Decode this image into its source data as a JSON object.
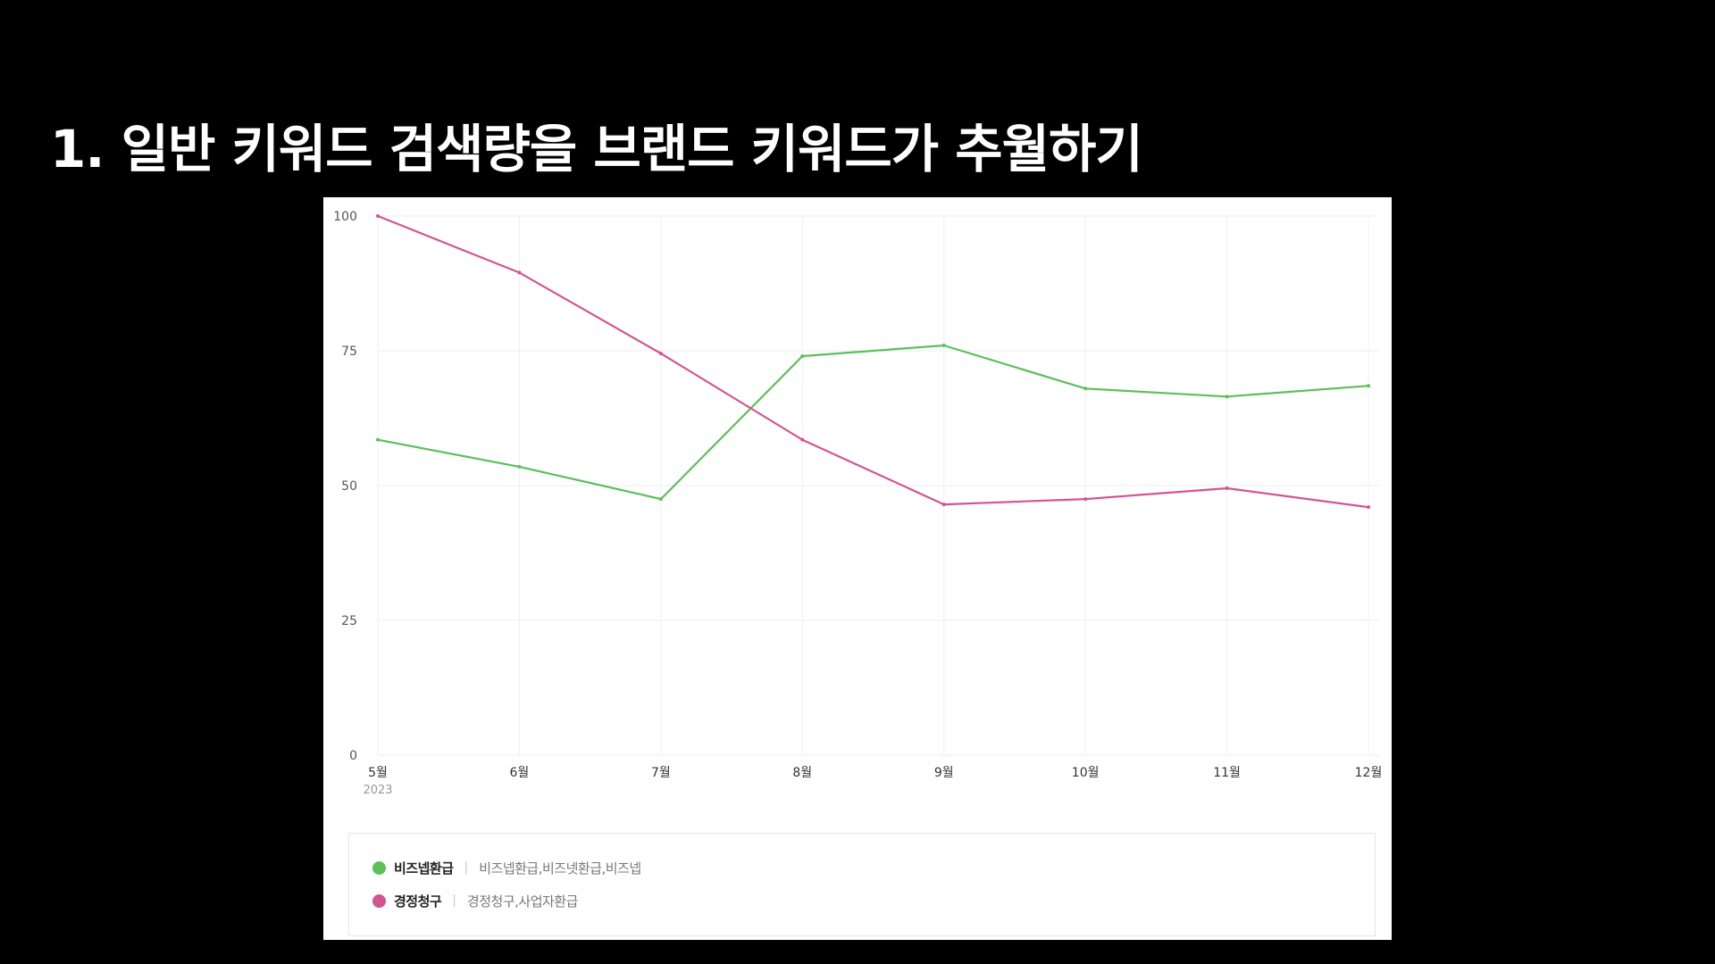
{
  "slide": {
    "title": "1. 일반 키워드 검색량을 브랜드 키워드가 추월하기"
  },
  "legend": {
    "separator": "|",
    "items": [
      {
        "name": "비즈넵환급",
        "keywords": "비즈넵환급,비즈넷환급,비즈넵",
        "color": "#5cbf5a"
      },
      {
        "name": "경정청구",
        "keywords": "경정청구,사업자환급",
        "color": "#d25592"
      }
    ]
  },
  "chart_data": {
    "type": "line",
    "categories": [
      "5월",
      "6월",
      "7월",
      "8월",
      "9월",
      "10월",
      "11월",
      "12월"
    ],
    "x_sublabel": "2023",
    "ylim": [
      0,
      100
    ],
    "y_ticks": [
      0,
      25,
      50,
      75,
      100
    ],
    "y_tick_labels": [
      "0",
      "25",
      "50",
      "75",
      "100"
    ],
    "grid": true,
    "legend_position": "bottom",
    "series": [
      {
        "name": "비즈넵환급",
        "color": "#5cbf5a",
        "values": [
          58.5,
          53.5,
          47.5,
          74,
          76,
          68,
          66.5,
          68.5
        ]
      },
      {
        "name": "경정청구",
        "color": "#d25592",
        "values": [
          100,
          89.5,
          74.5,
          58.5,
          46.5,
          47.5,
          49.5,
          46
        ]
      }
    ]
  }
}
